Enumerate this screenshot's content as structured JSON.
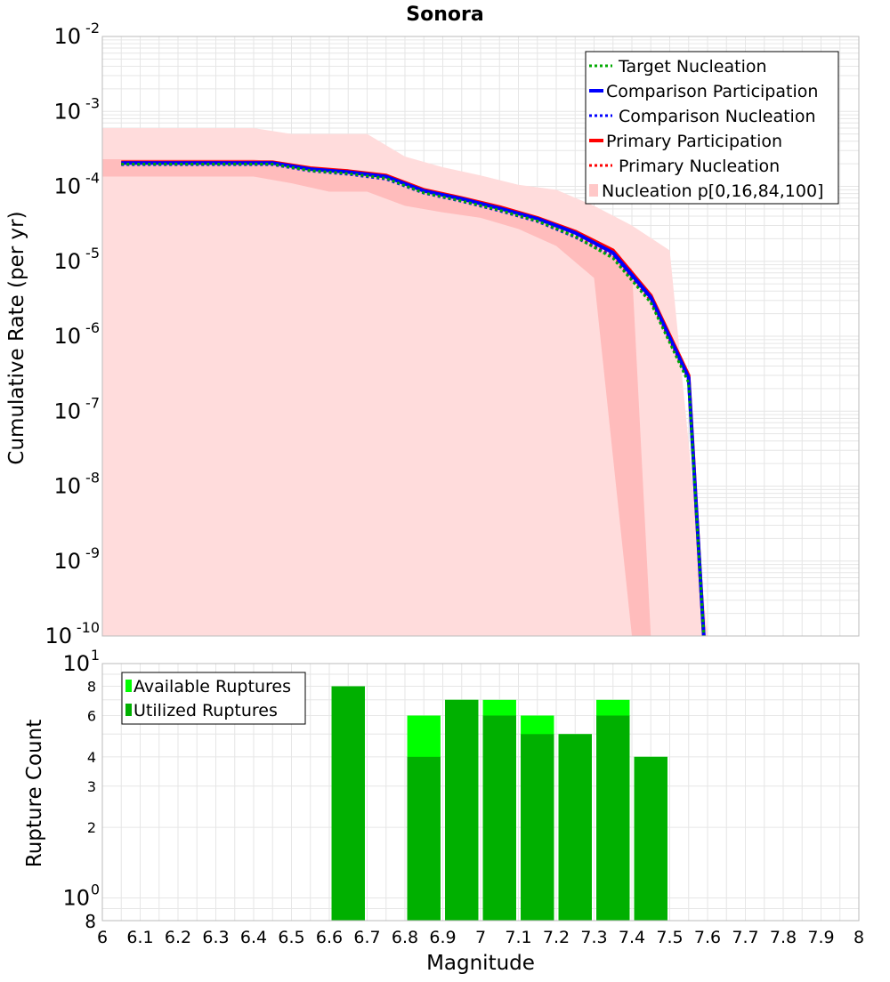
{
  "chart_data": [
    {
      "type": "line",
      "title": "Sonora",
      "ylabel": "Cumulative Rate (per yr)",
      "xlabel": "",
      "y_scale": "log",
      "xlim": [
        6,
        8
      ],
      "ylim": [
        1e-10,
        0.01
      ],
      "y_ticks": [
        {
          "base": "10",
          "exp": "-2",
          "value": 0.01
        },
        {
          "base": "10",
          "exp": "-3",
          "value": 0.001
        },
        {
          "base": "10",
          "exp": "-4",
          "value": 0.0001
        },
        {
          "base": "10",
          "exp": "-5",
          "value": 1e-05
        },
        {
          "base": "10",
          "exp": "-6",
          "value": 1e-06
        },
        {
          "base": "10",
          "exp": "-7",
          "value": 1e-07
        },
        {
          "base": "10",
          "exp": "-8",
          "value": 1e-08
        },
        {
          "base": "10",
          "exp": "-9",
          "value": 1e-09
        },
        {
          "base": "10",
          "exp": "-10",
          "value": 1e-10
        }
      ],
      "grid": true,
      "legend_position": "top-right",
      "legend": [
        {
          "label": "Target Nucleation",
          "color": "#00aa00",
          "style": "dotted"
        },
        {
          "label": "Comparison Participation",
          "color": "#0000ff",
          "style": "solid"
        },
        {
          "label": "Comparison Nucleation",
          "color": "#0000ff",
          "style": "dotted"
        },
        {
          "label": "Primary Participation",
          "color": "#ff0000",
          "style": "solid"
        },
        {
          "label": "Primary Nucleation",
          "color": "#ff0000",
          "style": "dotted"
        },
        {
          "label": "Nucleation p[0,16,84,100]",
          "color": "#ffc8c8",
          "style": "box"
        }
      ],
      "x": [
        6.05,
        6.15,
        6.25,
        6.35,
        6.45,
        6.55,
        6.65,
        6.75,
        6.85,
        6.95,
        7.05,
        7.15,
        7.25,
        7.35,
        7.45,
        7.55,
        7.59
      ],
      "series": [
        {
          "name": "Primary Participation",
          "color": "#ff0000",
          "style": "solid",
          "values": [
            0.00021,
            0.00021,
            0.00021,
            0.00021,
            0.00021,
            0.000175,
            0.00016,
            0.00014,
            9e-05,
            7e-05,
            5.3e-05,
            3.8e-05,
            2.5e-05,
            1.4e-05,
            3.5e-06,
            3e-07,
            1e-10
          ]
        },
        {
          "name": "Primary Nucleation",
          "color": "#ff0000",
          "style": "dotted",
          "values": [
            0.0002,
            0.0002,
            0.0002,
            0.0002,
            0.0002,
            0.000165,
            0.00015,
            0.00013,
            8.4e-05,
            6.5e-05,
            4.9e-05,
            3.5e-05,
            2.2e-05,
            1.2e-05,
            3e-06,
            2.6e-07,
            1e-10
          ]
        },
        {
          "name": "Comparison Participation",
          "color": "#0000ff",
          "style": "solid",
          "values": [
            0.000205,
            0.000205,
            0.000205,
            0.000205,
            0.000205,
            0.00017,
            0.000155,
            0.000135,
            8.7e-05,
            6.8e-05,
            5.1e-05,
            3.7e-05,
            2.4e-05,
            1.3e-05,
            3.3e-06,
            2.8e-07,
            1e-10
          ]
        },
        {
          "name": "Comparison Nucleation",
          "color": "#0000ff",
          "style": "dotted",
          "values": [
            0.000195,
            0.000195,
            0.000195,
            0.000195,
            0.000195,
            0.00016,
            0.000145,
            0.000125,
            8.1e-05,
            6.3e-05,
            4.7e-05,
            3.4e-05,
            2.1e-05,
            1.15e-05,
            2.9e-06,
            2.5e-07,
            1e-10
          ]
        },
        {
          "name": "Target Nucleation",
          "color": "#00aa00",
          "style": "dotted",
          "values": [
            0.000198,
            0.000198,
            0.000198,
            0.000198,
            0.000198,
            0.000162,
            0.000148,
            0.000128,
            8.2e-05,
            6.4e-05,
            4.8e-05,
            3.45e-05,
            2.15e-05,
            1.1e-05,
            2.8e-06,
            2.4e-07,
            1e-10
          ]
        }
      ],
      "bands": [
        {
          "name": "p0-p100",
          "color": "#ffdcdc",
          "x": [
            6.0,
            6.1,
            6.2,
            6.3,
            6.4,
            6.5,
            6.6,
            6.7,
            6.8,
            6.9,
            7.0,
            7.1,
            7.2,
            7.3,
            7.4,
            7.5,
            7.6
          ],
          "upper": [
            0.0006,
            0.0006,
            0.0006,
            0.0006,
            0.0006,
            0.0005,
            0.0005,
            0.0005,
            0.00025,
            0.00018,
            0.00014,
            0.000105,
            9e-05,
            5.5e-05,
            3e-05,
            1.4e-05,
            1e-10
          ],
          "lower": [
            1e-10,
            1e-10,
            1e-10,
            1e-10,
            1e-10,
            1e-10,
            1e-10,
            1e-10,
            1e-10,
            1e-10,
            1e-10,
            1e-10,
            1e-10,
            1e-10,
            1e-10,
            1e-10,
            1e-10
          ]
        },
        {
          "name": "p16-p84",
          "color": "#ffbcbc",
          "x": [
            6.0,
            6.1,
            6.2,
            6.3,
            6.4,
            6.5,
            6.6,
            6.7,
            6.8,
            6.9,
            7.0,
            7.1,
            7.2,
            7.3,
            7.4,
            7.45
          ],
          "upper": [
            0.00023,
            0.00023,
            0.00023,
            0.00023,
            0.00023,
            0.00019,
            0.000175,
            0.000155,
            0.0001,
            7.8e-05,
            6e-05,
            4.3e-05,
            2.9e-05,
            1.6e-05,
            8e-06,
            1e-10
          ],
          "lower": [
            0.000135,
            0.000135,
            0.000135,
            0.000135,
            0.000135,
            0.00011,
            8.5e-05,
            8.5e-05,
            5.5e-05,
            4.5e-05,
            3.8e-05,
            2.7e-05,
            1.6e-05,
            6e-06,
            1e-10,
            1e-10
          ]
        }
      ]
    },
    {
      "type": "bar",
      "ylabel": "Rupture Count",
      "xlabel": "Magnitude",
      "y_scale": "log",
      "xlim": [
        6,
        8
      ],
      "ylim": [
        0.8,
        10
      ],
      "x_ticks": [
        "6",
        "6.1",
        "6.2",
        "6.3",
        "6.4",
        "6.5",
        "6.6",
        "6.7",
        "6.8",
        "6.9",
        "7",
        "7.1",
        "7.2",
        "7.3",
        "7.4",
        "7.5",
        "7.6",
        "7.7",
        "7.8",
        "7.9",
        "8"
      ],
      "y_ticks": [
        {
          "label": "8",
          "value": 8
        },
        {
          "label": "6",
          "value": 6
        },
        {
          "label": "4",
          "value": 4
        },
        {
          "label": "3",
          "value": 3
        },
        {
          "label": "2",
          "value": 2
        }
      ],
      "y_pow_ticks": [
        {
          "base": "10",
          "exp": "1",
          "value": 10
        },
        {
          "base": "10",
          "exp": "0",
          "value": 1
        }
      ],
      "y_bottom_label": {
        "label": "8",
        "value": 0.8
      },
      "grid": true,
      "legend_position": "top-left",
      "legend": [
        {
          "label": "Available Ruptures",
          "color": "#00ff00"
        },
        {
          "label": "Utilized Ruptures",
          "color": "#00b000"
        }
      ],
      "categories": [
        6.65,
        6.85,
        6.95,
        7.05,
        7.15,
        7.25,
        7.35,
        7.45
      ],
      "series": [
        {
          "name": "Available Ruptures",
          "color": "#00ff00",
          "values": [
            8,
            6,
            7,
            7,
            6,
            5,
            7,
            4
          ]
        },
        {
          "name": "Utilized Ruptures",
          "color": "#00b000",
          "values": [
            8,
            4,
            7,
            6,
            5,
            5,
            6,
            4
          ]
        }
      ]
    }
  ]
}
